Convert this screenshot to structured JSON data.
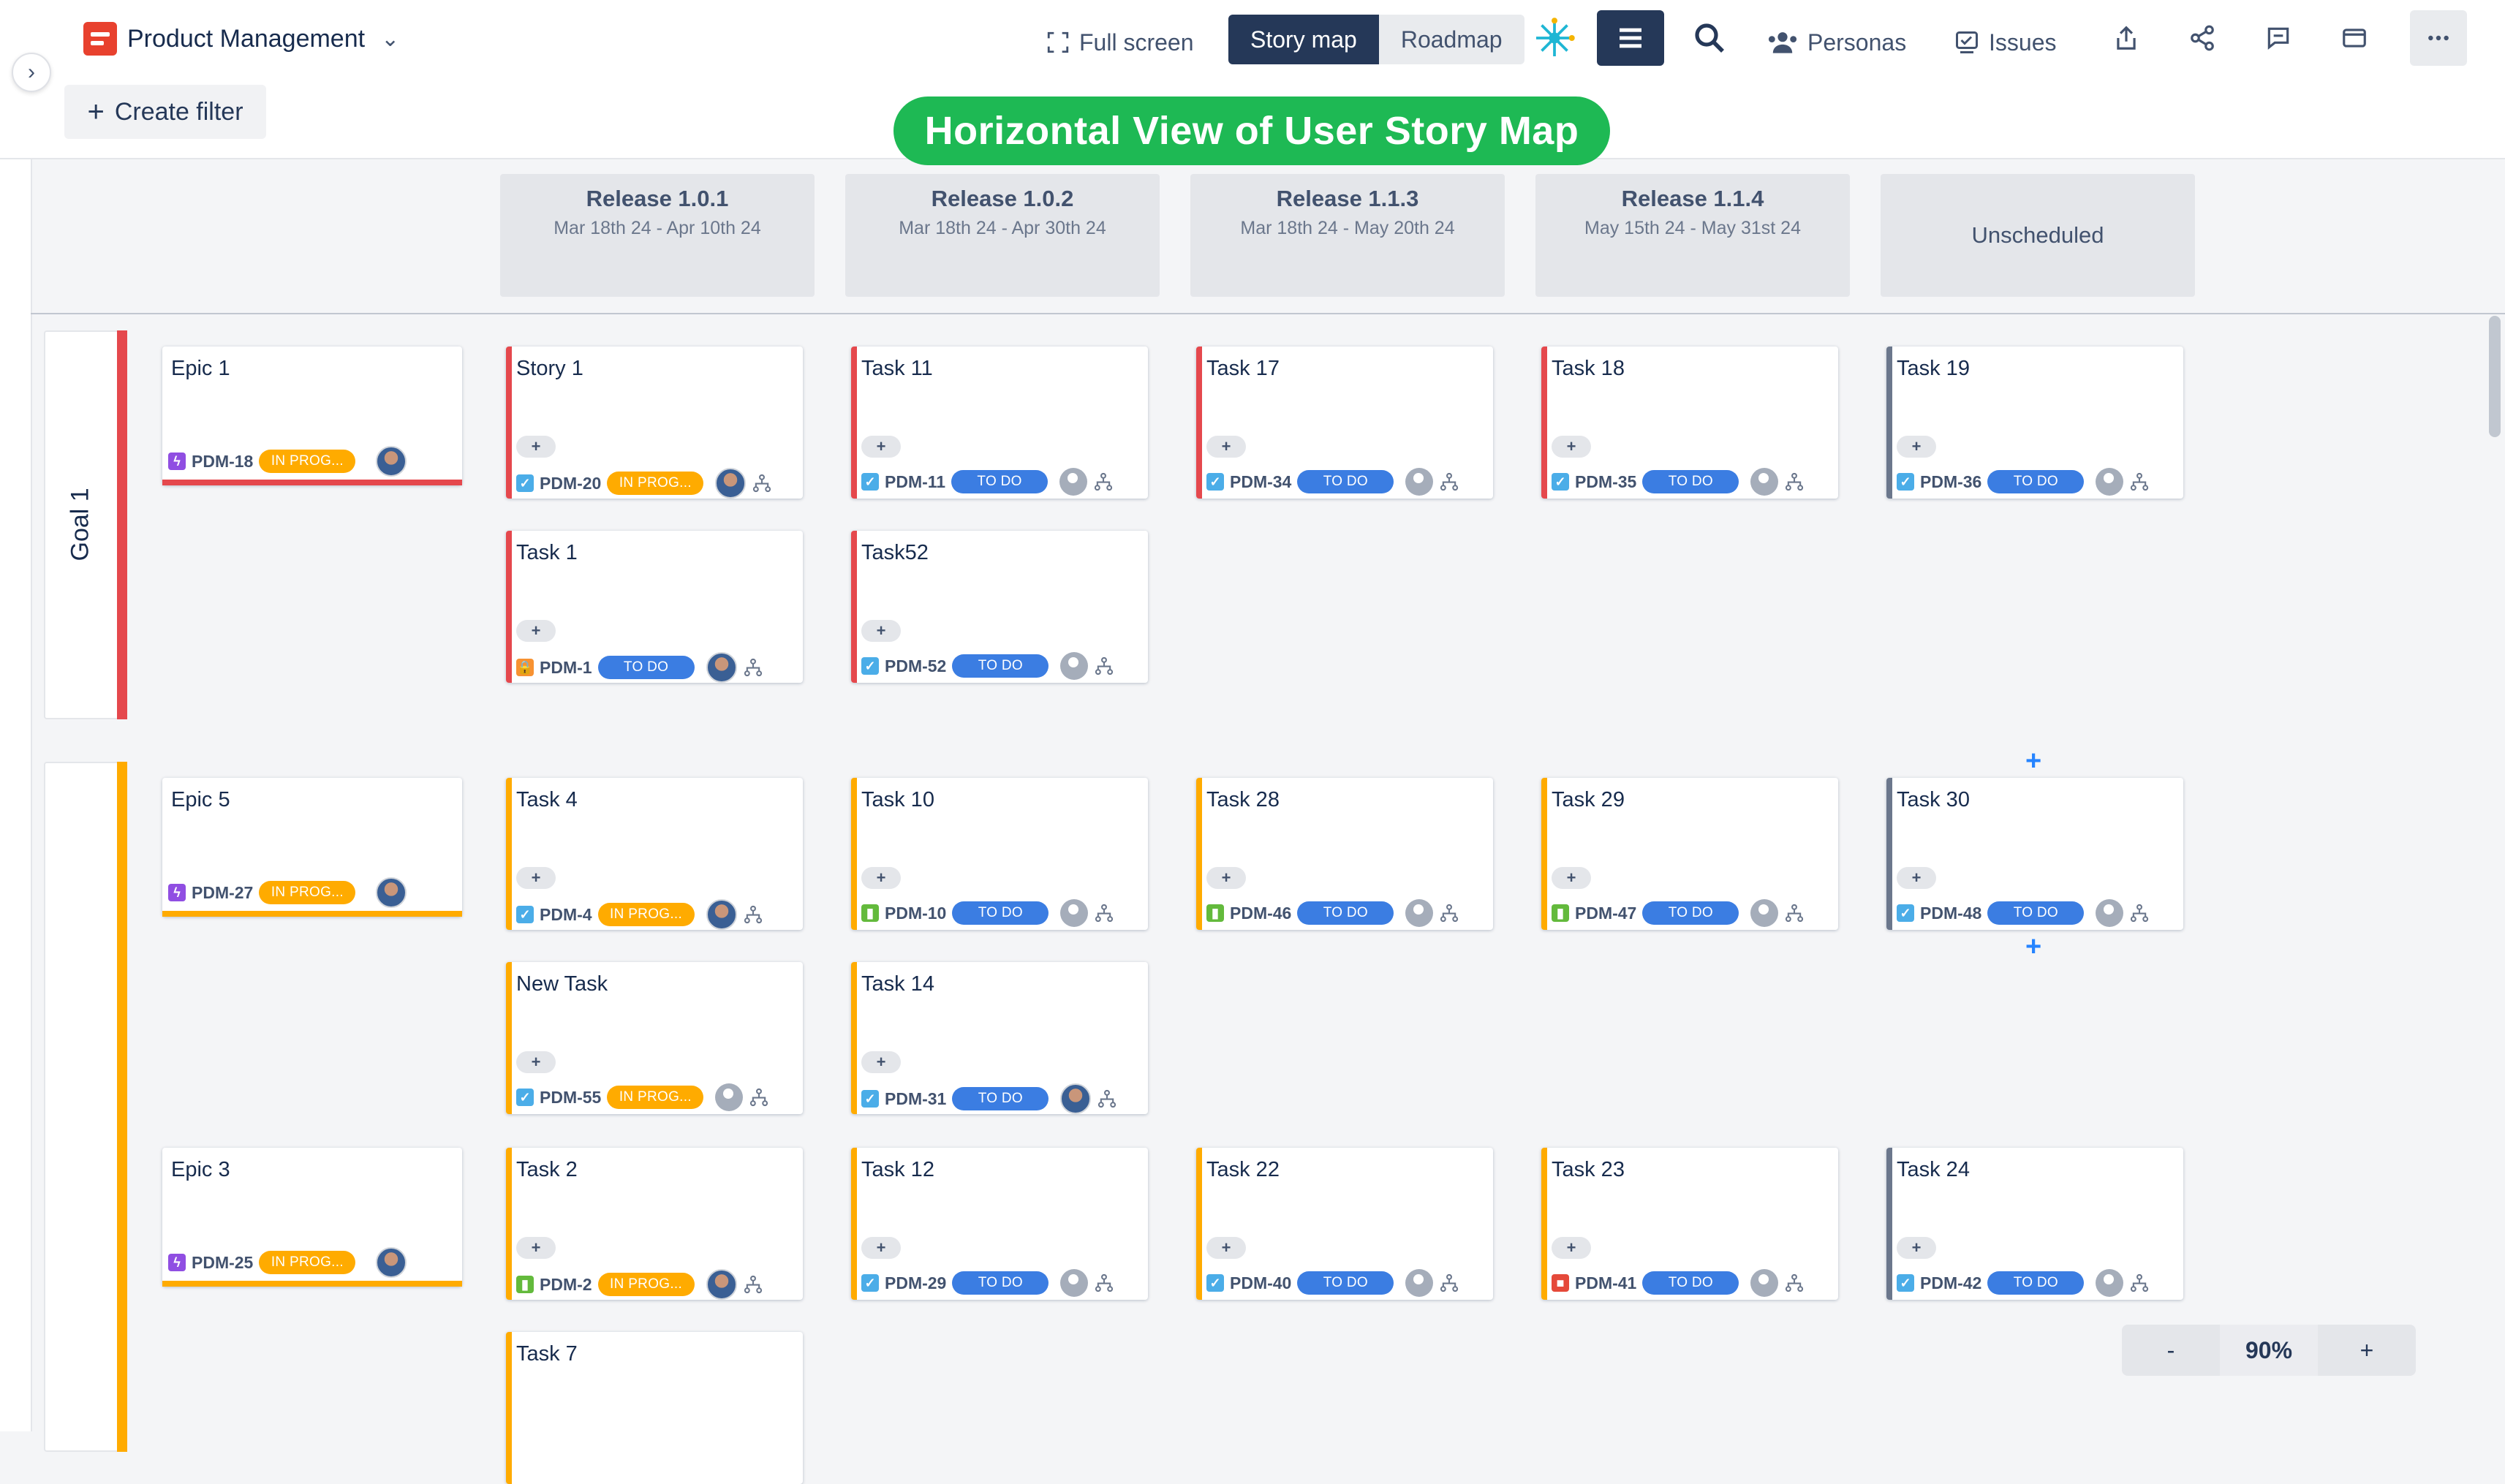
{
  "app": {
    "project_name": "Product Management",
    "create_filter": "Create filter",
    "banner": "Horizontal View of User Story Map"
  },
  "toolbar": {
    "fullscreen": "Full screen",
    "story_map": "Story map",
    "roadmap": "Roadmap",
    "personas": "Personas",
    "issues": "Issues"
  },
  "releases": [
    {
      "title": "Release 1.0.1",
      "dates": "Mar 18th 24 - Apr 10th 24"
    },
    {
      "title": "Release 1.0.2",
      "dates": "Mar 18th 24 - Apr 30th 24"
    },
    {
      "title": "Release 1.1.3",
      "dates": "Mar 18th 24 - May 20th 24"
    },
    {
      "title": "Release 1.1.4",
      "dates": "May 15th 24 - May 31st 24"
    },
    {
      "title": "Unscheduled",
      "dates": ""
    }
  ],
  "goals": [
    {
      "label": "Goal 1",
      "color": "#e5484d"
    },
    {
      "label": "",
      "color": "#ffab00"
    }
  ],
  "epics": [
    {
      "title": "Epic 1",
      "key": "PDM-18",
      "status": "IN PROG...",
      "color": "#e5484d"
    },
    {
      "title": "Epic 5",
      "key": "PDM-27",
      "status": "IN PROG...",
      "color": "#ffab00"
    },
    {
      "title": "Epic 3",
      "key": "PDM-25",
      "status": "IN PROG...",
      "color": "#ffab00"
    }
  ],
  "cards": [
    {
      "title": "Story 1",
      "key": "PDM-20",
      "status": "IN PROG...",
      "type": "task",
      "avatar": "photo",
      "bar": "#e5484d"
    },
    {
      "title": "Task 11",
      "key": "PDM-11",
      "status": "TO DO",
      "type": "task",
      "avatar": "none",
      "bar": "#e5484d"
    },
    {
      "title": "Task 17",
      "key": "PDM-34",
      "status": "TO DO",
      "type": "task",
      "avatar": "none",
      "bar": "#e5484d"
    },
    {
      "title": "Task 18",
      "key": "PDM-35",
      "status": "TO DO",
      "type": "task",
      "avatar": "none",
      "bar": "#e5484d"
    },
    {
      "title": "Task 19",
      "key": "PDM-36",
      "status": "TO DO",
      "type": "task",
      "avatar": "none",
      "bar": "#6b778c"
    },
    {
      "title": "Task 1",
      "key": "PDM-1",
      "status": "TO DO",
      "type": "lock",
      "avatar": "photo",
      "bar": "#e5484d"
    },
    {
      "title": "Task52",
      "key": "PDM-52",
      "status": "TO DO",
      "type": "task",
      "avatar": "none",
      "bar": "#e5484d"
    },
    {
      "title": "Task 4",
      "key": "PDM-4",
      "status": "IN PROG...",
      "type": "task",
      "avatar": "photo",
      "bar": "#ffab00"
    },
    {
      "title": "Task 10",
      "key": "PDM-10",
      "status": "TO DO",
      "type": "story",
      "avatar": "none",
      "bar": "#ffab00"
    },
    {
      "title": "Task 28",
      "key": "PDM-46",
      "status": "TO DO",
      "type": "story",
      "avatar": "none",
      "bar": "#ffab00"
    },
    {
      "title": "Task 29",
      "key": "PDM-47",
      "status": "TO DO",
      "type": "story",
      "avatar": "none",
      "bar": "#ffab00"
    },
    {
      "title": "Task 30",
      "key": "PDM-48",
      "status": "TO DO",
      "type": "task",
      "avatar": "none",
      "bar": "#6b778c"
    },
    {
      "title": "New Task",
      "key": "PDM-55",
      "status": "IN PROG...",
      "type": "task",
      "avatar": "none",
      "bar": "#ffab00"
    },
    {
      "title": "Task 14",
      "key": "PDM-31",
      "status": "TO DO",
      "type": "task",
      "avatar": "photo",
      "bar": "#ffab00"
    },
    {
      "title": "Task 2",
      "key": "PDM-2",
      "status": "IN PROG...",
      "type": "story",
      "avatar": "photo",
      "bar": "#ffab00"
    },
    {
      "title": "Task 12",
      "key": "PDM-29",
      "status": "TO DO",
      "type": "task",
      "avatar": "none",
      "bar": "#ffab00"
    },
    {
      "title": "Task 22",
      "key": "PDM-40",
      "status": "TO DO",
      "type": "task",
      "avatar": "none",
      "bar": "#ffab00"
    },
    {
      "title": "Task 23",
      "key": "PDM-41",
      "status": "TO DO",
      "type": "bug",
      "avatar": "none",
      "bar": "#ffab00"
    },
    {
      "title": "Task 24",
      "key": "PDM-42",
      "status": "TO DO",
      "type": "task",
      "avatar": "none",
      "bar": "#6b778c"
    },
    {
      "title": "Task 7",
      "key": "",
      "status": "",
      "type": "",
      "avatar": "",
      "bar": "#ffab00"
    }
  ],
  "zoom": {
    "minus": "-",
    "value": "90%",
    "plus": "+"
  },
  "colors": {
    "todo": "#3b7de2",
    "in_progress": "#ffab00",
    "task_type": "#4bade8",
    "story_type": "#63ba3c",
    "bug_type": "#e5493a",
    "lock_type": "#f79232",
    "epic_type": "#904ee2",
    "banner": "#1eb954"
  }
}
